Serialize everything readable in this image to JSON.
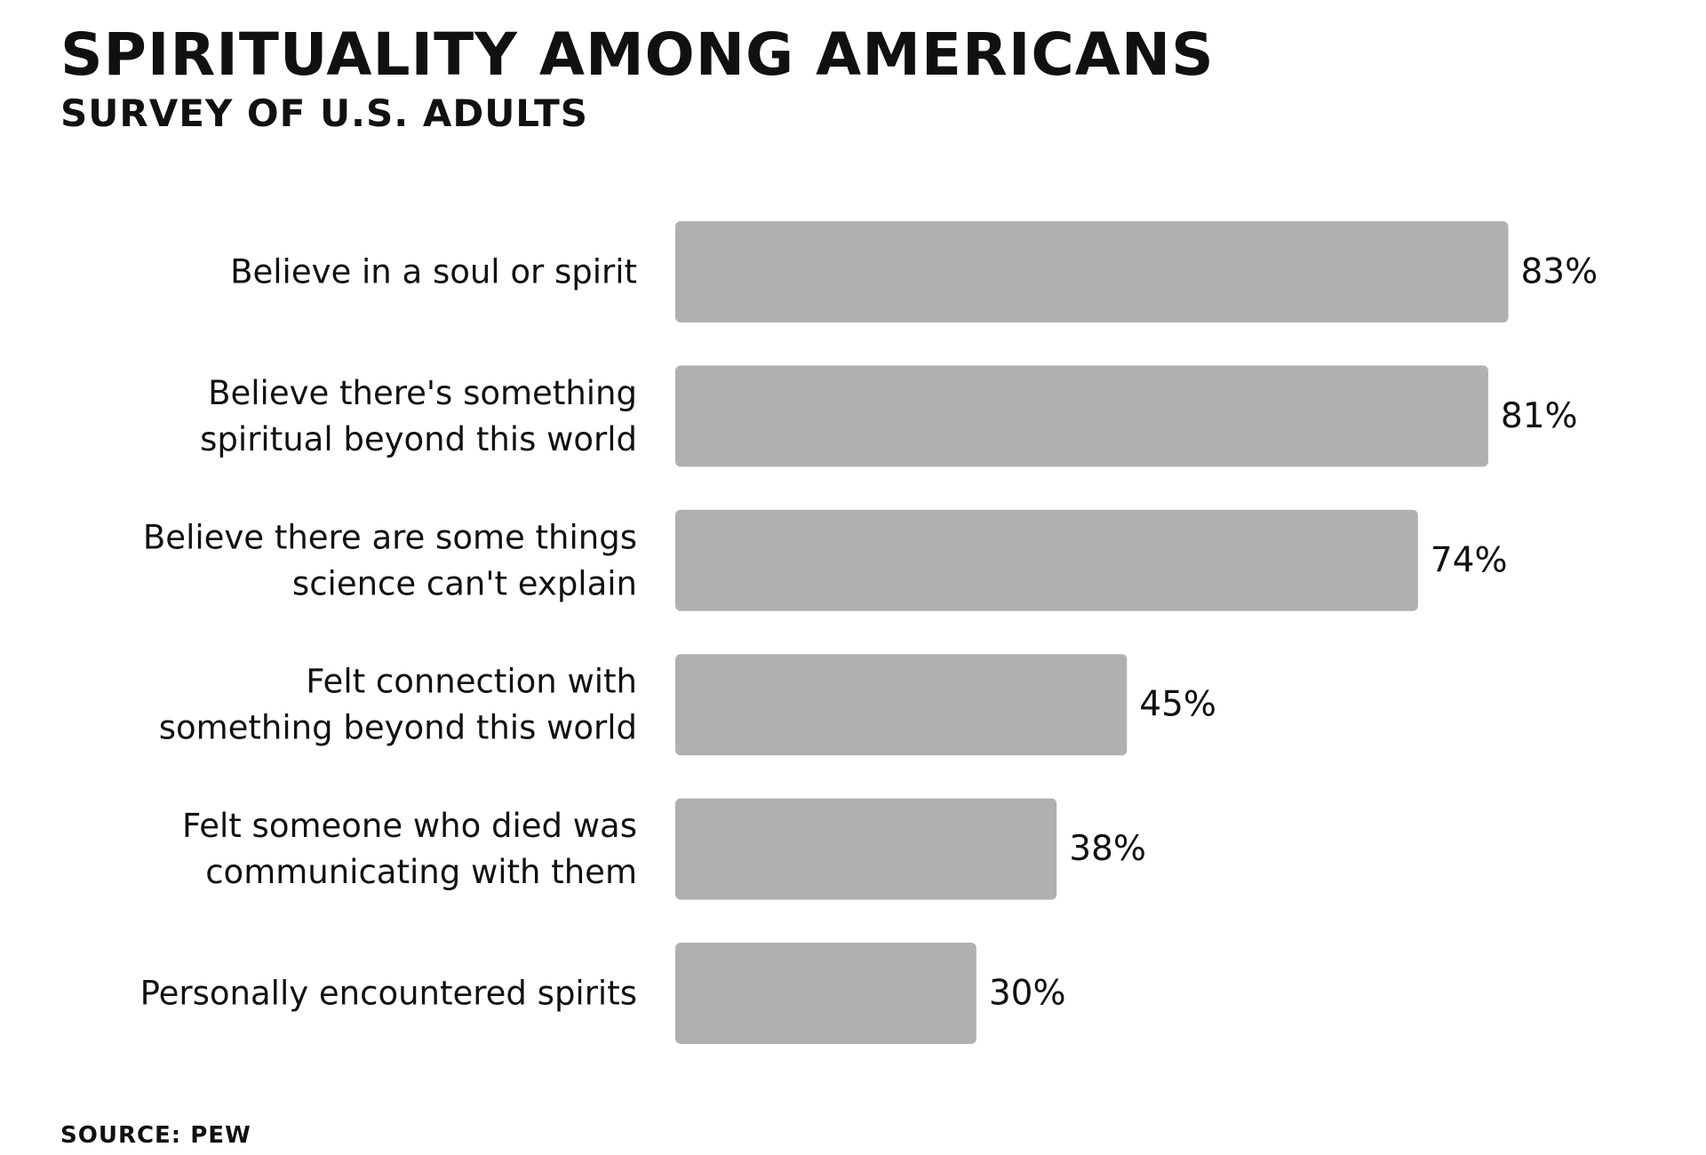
{
  "header": {
    "title": "SPIRITUALITY AMONG AMERICANS",
    "subtitle": "SURVEY OF U.S. ADULTS"
  },
  "footer": {
    "source": "SOURCE: PEW"
  },
  "colors": {
    "bar": "#b0b0b0",
    "text": "#111111",
    "background": "#ffffff"
  },
  "chart_data": {
    "type": "bar",
    "orientation": "horizontal",
    "title": "SPIRITUALITY AMONG AMERICANS",
    "subtitle": "SURVEY OF U.S. ADULTS",
    "categories": [
      [
        "Believe in a soul or spirit"
      ],
      [
        "Believe there's something",
        "spiritual beyond this world"
      ],
      [
        "Believe there are some things",
        "science can't explain"
      ],
      [
        "Felt connection with",
        "something beyond this world"
      ],
      [
        "Felt someone who died was",
        "communicating with them"
      ],
      [
        "Personally encountered spirits"
      ]
    ],
    "values": [
      83,
      81,
      74,
      45,
      38,
      30
    ],
    "value_labels": [
      "83%",
      "81%",
      "74%",
      "45%",
      "38%",
      "30%"
    ],
    "unit": "%",
    "xlim": [
      0,
      100
    ],
    "grid": false,
    "axes_visible": false,
    "legend": "none"
  }
}
